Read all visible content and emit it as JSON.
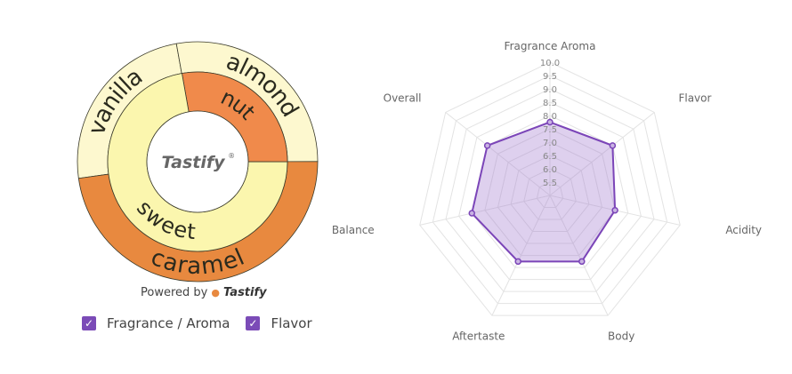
{
  "sunburst": {
    "center_label": "Tastify",
    "center_mark": "®",
    "outer_ring": [
      {
        "label": "vanilla",
        "share": 0.244,
        "color": "#fdf8cf"
      },
      {
        "label": "almond",
        "share": 0.278,
        "color": "#fdf8cf"
      },
      {
        "label": "caramel",
        "share": 0.478,
        "color": "#e8893f"
      }
    ],
    "inner_ring": [
      {
        "label": "nut",
        "share": 0.278,
        "color": "#f08a4b"
      },
      {
        "label": "sweet",
        "share": 0.722,
        "color": "#fbf6ae"
      }
    ],
    "powered_by": "Powered by",
    "powered_brand": "Tastify"
  },
  "legend": [
    {
      "label": "Fragrance / Aroma",
      "checked": true,
      "icon": "checkbox-checked-icon"
    },
    {
      "label": "Flavor",
      "checked": true,
      "icon": "checkbox-checked-icon"
    }
  ],
  "accent_color": "#7b4bb7",
  "chart_data": {
    "type": "radar",
    "categories": [
      "Fragrance Aroma",
      "Flavor",
      "Acidity",
      "Body",
      "Aftertaste",
      "Balance",
      "Overall"
    ],
    "values": [
      7.75,
      8.0,
      7.5,
      7.75,
      7.75,
      8.0,
      8.0
    ],
    "rlim": [
      5.0,
      10.0
    ],
    "ticks": [
      "5.5",
      "6.0",
      "6.5",
      "7.0",
      "7.5",
      "8.0",
      "8.5",
      "9.0",
      "9.5",
      "10.0"
    ],
    "grid": true,
    "line_color": "#7b45b8",
    "fill_color": "rgba(160,120,205,0.35)"
  }
}
